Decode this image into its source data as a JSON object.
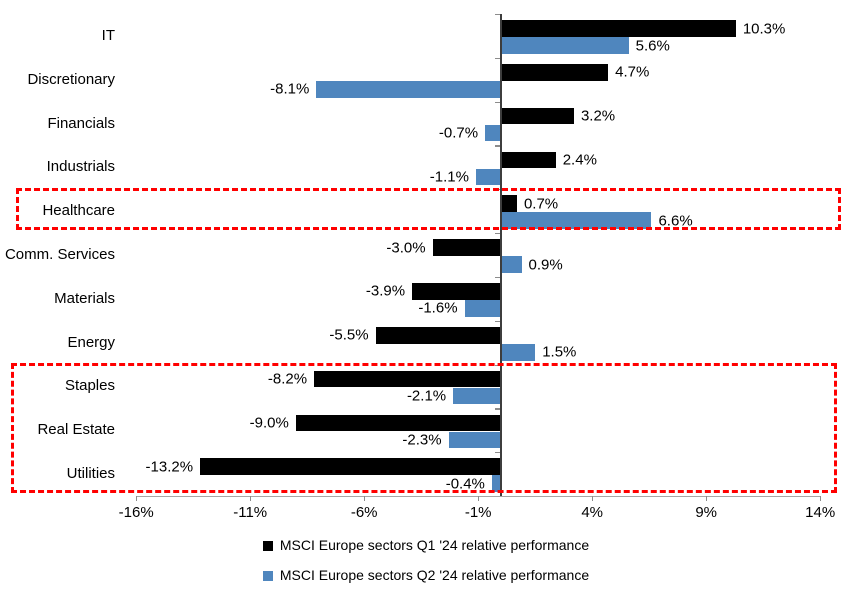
{
  "chart_data": {
    "type": "bar",
    "orientation": "horizontal",
    "title": "",
    "categories": [
      "IT",
      "Discretionary",
      "Financials",
      "Industrials",
      "Healthcare",
      "Comm. Services",
      "Materials",
      "Energy",
      "Staples",
      "Real Estate",
      "Utilities"
    ],
    "series": [
      {
        "name": "MSCI Europe sectors Q1 '24 relative performance",
        "color": "#000000",
        "values": [
          10.3,
          4.7,
          3.2,
          2.4,
          0.7,
          -3.0,
          -3.9,
          -5.5,
          -8.2,
          -9.0,
          -13.2
        ]
      },
      {
        "name": "MSCI Europe sectors Q2 '24 relative performance",
        "color": "#4f86be",
        "values": [
          5.6,
          -8.1,
          -0.7,
          -1.1,
          6.6,
          0.9,
          -1.6,
          1.5,
          -2.1,
          -2.3,
          -0.4
        ]
      }
    ],
    "value_labels": true,
    "value_label_format": "{value:.1f}%",
    "x_tick_labels": [
      "-16%",
      "-11%",
      "-6%",
      "-1%",
      "4%",
      "9%",
      "14%"
    ],
    "x_tick_values": [
      -16,
      -11,
      -6,
      -1,
      4,
      9,
      14
    ],
    "xlim": [
      -17.3,
      15.4
    ],
    "grid": false,
    "legend_position": "bottom",
    "axis_color": "#3d3d3d",
    "x_axis_color": "#a6a6a6",
    "highlight_color": "#ff0000",
    "highlights": [
      {
        "name": "healthcare-box",
        "categories": [
          "Healthcare"
        ]
      },
      {
        "name": "defensive-sectors-box",
        "categories": [
          "Staples",
          "Real Estate",
          "Utilities"
        ]
      }
    ]
  }
}
